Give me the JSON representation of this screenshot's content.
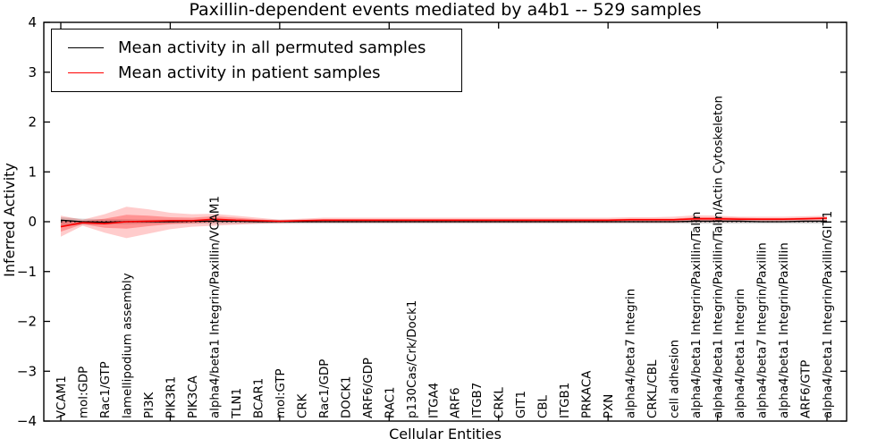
{
  "chart_data": {
    "type": "line",
    "title": "Paxillin-dependent events mediated by a4b1 -- 529 samples",
    "xlabel": "Cellular Entities",
    "ylabel": "Inferred Activity",
    "ylim": [
      -4,
      4
    ],
    "yticks": [
      4,
      3,
      2,
      1,
      0,
      -1,
      -2,
      -3,
      -4
    ],
    "ytick_labels": [
      "4",
      "3",
      "2",
      "1",
      "0",
      "−1",
      "−2",
      "−3",
      "−4"
    ],
    "grid": false,
    "legend_position": "upper-left",
    "colors": {
      "permuted": "#000000",
      "patient": "#ff0000",
      "permuted_band": "#999999",
      "frame": "#000000"
    },
    "zero_line": {
      "y": 0,
      "style": "dotted",
      "color": "#000000"
    },
    "categories": [
      "VCAM1",
      "mol:GDP",
      "Rac1/GTP",
      "lamellipodium assembly",
      "PI3K",
      "PIK3R1",
      "PIK3CA",
      "alpha4/beta1 Integrin/Paxillin/VCAM1",
      "TLN1",
      "BCAR1",
      "mol:GTP",
      "CRK",
      "Rac1/GDP",
      "DOCK1",
      "ARF6/GDP",
      "RAC1",
      "p130Cas/Crk/Dock1",
      "ITGA4",
      "ARF6",
      "ITGB7",
      "CRKL",
      "GIT1",
      "CBL",
      "ITGB1",
      "PRKACA",
      "PXN",
      "alpha4/beta7 Integrin",
      "CRKL/CBL",
      "cell adhesion",
      "alpha4/beta1 Integrin/Paxillin/Talin",
      "alpha4/beta1 Integrin/Paxillin/Talin/Actin Cytoskeleton",
      "alpha4/beta1 Integrin",
      "alpha4/beta7 Integrin/Paxillin",
      "alpha4/beta1 Integrin/Paxillin",
      "ARF6/GTP",
      "alpha4/beta1 Integrin/Paxillin/GIT1"
    ],
    "series": [
      {
        "name": "Mean activity in all permuted samples",
        "color": "#000000",
        "values": [
          0.03,
          0.0,
          -0.01,
          0.0,
          0.0,
          0.0,
          0.01,
          0.01,
          0.01,
          0.0,
          0.0,
          0.0,
          0.0,
          0.0,
          0.0,
          0.0,
          0.0,
          0.0,
          0.0,
          0.0,
          0.0,
          0.0,
          0.0,
          0.0,
          0.0,
          0.0,
          0.0,
          0.0,
          0.0,
          0.01,
          0.01,
          0.01,
          0.0,
          0.0,
          0.01,
          0.01
        ]
      },
      {
        "name": "Mean activity in patient samples",
        "color": "#ff0000",
        "values": [
          -0.1,
          -0.02,
          -0.04,
          0.0,
          0.01,
          0.02,
          0.02,
          0.05,
          0.03,
          0.02,
          0.01,
          0.02,
          0.03,
          0.03,
          0.03,
          0.03,
          0.03,
          0.03,
          0.03,
          0.03,
          0.03,
          0.03,
          0.03,
          0.03,
          0.03,
          0.03,
          0.04,
          0.04,
          0.04,
          0.06,
          0.06,
          0.05,
          0.05,
          0.05,
          0.06,
          0.07
        ]
      }
    ],
    "bands": [
      {
        "name": "permuted-range",
        "color": "#999999",
        "opacity": 0.38,
        "upper": [
          0.09,
          0.06,
          0.05,
          0.05,
          0.04,
          0.04,
          0.04,
          0.04,
          0.04,
          0.04,
          0.04,
          0.04,
          0.04,
          0.04,
          0.04,
          0.04,
          0.04,
          0.04,
          0.04,
          0.04,
          0.04,
          0.04,
          0.04,
          0.04,
          0.04,
          0.04,
          0.04,
          0.04,
          0.04,
          0.04,
          0.04,
          0.04,
          0.04,
          0.04,
          0.04,
          0.04
        ],
        "lower": [
          -0.09,
          -0.06,
          -0.05,
          -0.05,
          -0.04,
          -0.04,
          -0.04,
          -0.04,
          -0.04,
          -0.04,
          -0.04,
          -0.04,
          -0.04,
          -0.04,
          -0.04,
          -0.04,
          -0.04,
          -0.04,
          -0.04,
          -0.04,
          -0.04,
          -0.04,
          -0.04,
          -0.04,
          -0.04,
          -0.04,
          -0.04,
          -0.04,
          -0.04,
          -0.04,
          -0.04,
          -0.04,
          -0.04,
          -0.04,
          -0.04,
          -0.04
        ]
      },
      {
        "name": "patient-range-outer",
        "color": "#ff0000",
        "opacity": 0.2,
        "upper": [
          0.12,
          0.04,
          0.15,
          0.3,
          0.25,
          0.18,
          0.15,
          0.16,
          0.12,
          0.08,
          0.04,
          0.06,
          0.08,
          0.08,
          0.08,
          0.08,
          0.08,
          0.08,
          0.08,
          0.08,
          0.08,
          0.08,
          0.08,
          0.08,
          0.08,
          0.08,
          0.09,
          0.09,
          0.1,
          0.13,
          0.12,
          0.1,
          0.1,
          0.1,
          0.11,
          0.12
        ],
        "lower": [
          -0.3,
          -0.08,
          -0.22,
          -0.33,
          -0.24,
          -0.15,
          -0.1,
          -0.08,
          -0.06,
          -0.04,
          -0.03,
          -0.02,
          -0.02,
          -0.02,
          -0.02,
          -0.02,
          -0.02,
          -0.02,
          -0.02,
          -0.02,
          -0.02,
          -0.02,
          -0.02,
          -0.02,
          -0.02,
          -0.02,
          -0.02,
          -0.02,
          -0.02,
          -0.01,
          -0.01,
          -0.01,
          -0.01,
          -0.01,
          -0.01,
          0.0
        ]
      },
      {
        "name": "patient-range-inner",
        "color": "#ff0000",
        "opacity": 0.28,
        "upper": [
          0.02,
          0.01,
          0.06,
          0.14,
          0.12,
          0.09,
          0.08,
          0.11,
          0.08,
          0.05,
          0.02,
          0.04,
          0.05,
          0.05,
          0.05,
          0.05,
          0.05,
          0.05,
          0.05,
          0.05,
          0.05,
          0.05,
          0.05,
          0.05,
          0.05,
          0.05,
          0.06,
          0.06,
          0.06,
          0.09,
          0.09,
          0.08,
          0.07,
          0.07,
          0.08,
          0.09
        ],
        "lower": [
          -0.2,
          -0.05,
          -0.12,
          -0.14,
          -0.09,
          -0.05,
          -0.03,
          -0.01,
          0.0,
          0.0,
          0.0,
          0.0,
          0.01,
          0.01,
          0.01,
          0.01,
          0.01,
          0.01,
          0.01,
          0.01,
          0.01,
          0.01,
          0.01,
          0.01,
          0.01,
          0.01,
          0.02,
          0.02,
          0.02,
          0.03,
          0.03,
          0.03,
          0.03,
          0.03,
          0.04,
          0.05
        ]
      }
    ]
  }
}
